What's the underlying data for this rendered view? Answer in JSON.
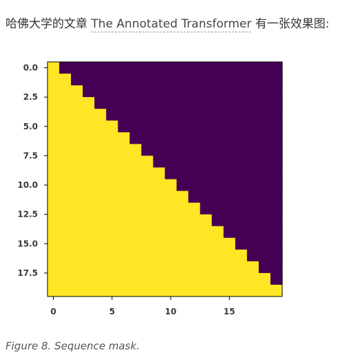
{
  "intro": {
    "prefix": "哈佛大学的文章",
    "link_text": "The Annotated Transformer",
    "suffix": "有一张效果图:"
  },
  "caption": "Figure 8. Sequence mask.",
  "colors": {
    "allowed": "#fde725",
    "masked": "#440154"
  },
  "chart_data": {
    "type": "heatmap",
    "title": "",
    "xlabel": "",
    "ylabel": "",
    "rows": 20,
    "cols": 20,
    "description_rule": "value = 1 where col <= row (lower-triangular incl. diagonal), else 0",
    "values": [
      [
        1,
        0,
        0,
        0,
        0,
        0,
        0,
        0,
        0,
        0,
        0,
        0,
        0,
        0,
        0,
        0,
        0,
        0,
        0,
        0
      ],
      [
        1,
        1,
        0,
        0,
        0,
        0,
        0,
        0,
        0,
        0,
        0,
        0,
        0,
        0,
        0,
        0,
        0,
        0,
        0,
        0
      ],
      [
        1,
        1,
        1,
        0,
        0,
        0,
        0,
        0,
        0,
        0,
        0,
        0,
        0,
        0,
        0,
        0,
        0,
        0,
        0,
        0
      ],
      [
        1,
        1,
        1,
        1,
        0,
        0,
        0,
        0,
        0,
        0,
        0,
        0,
        0,
        0,
        0,
        0,
        0,
        0,
        0,
        0
      ],
      [
        1,
        1,
        1,
        1,
        1,
        0,
        0,
        0,
        0,
        0,
        0,
        0,
        0,
        0,
        0,
        0,
        0,
        0,
        0,
        0
      ],
      [
        1,
        1,
        1,
        1,
        1,
        1,
        0,
        0,
        0,
        0,
        0,
        0,
        0,
        0,
        0,
        0,
        0,
        0,
        0,
        0
      ],
      [
        1,
        1,
        1,
        1,
        1,
        1,
        1,
        0,
        0,
        0,
        0,
        0,
        0,
        0,
        0,
        0,
        0,
        0,
        0,
        0
      ],
      [
        1,
        1,
        1,
        1,
        1,
        1,
        1,
        1,
        0,
        0,
        0,
        0,
        0,
        0,
        0,
        0,
        0,
        0,
        0,
        0
      ],
      [
        1,
        1,
        1,
        1,
        1,
        1,
        1,
        1,
        1,
        0,
        0,
        0,
        0,
        0,
        0,
        0,
        0,
        0,
        0,
        0
      ],
      [
        1,
        1,
        1,
        1,
        1,
        1,
        1,
        1,
        1,
        1,
        0,
        0,
        0,
        0,
        0,
        0,
        0,
        0,
        0,
        0
      ],
      [
        1,
        1,
        1,
        1,
        1,
        1,
        1,
        1,
        1,
        1,
        1,
        0,
        0,
        0,
        0,
        0,
        0,
        0,
        0,
        0
      ],
      [
        1,
        1,
        1,
        1,
        1,
        1,
        1,
        1,
        1,
        1,
        1,
        1,
        0,
        0,
        0,
        0,
        0,
        0,
        0,
        0
      ],
      [
        1,
        1,
        1,
        1,
        1,
        1,
        1,
        1,
        1,
        1,
        1,
        1,
        1,
        0,
        0,
        0,
        0,
        0,
        0,
        0
      ],
      [
        1,
        1,
        1,
        1,
        1,
        1,
        1,
        1,
        1,
        1,
        1,
        1,
        1,
        1,
        0,
        0,
        0,
        0,
        0,
        0
      ],
      [
        1,
        1,
        1,
        1,
        1,
        1,
        1,
        1,
        1,
        1,
        1,
        1,
        1,
        1,
        1,
        0,
        0,
        0,
        0,
        0
      ],
      [
        1,
        1,
        1,
        1,
        1,
        1,
        1,
        1,
        1,
        1,
        1,
        1,
        1,
        1,
        1,
        1,
        0,
        0,
        0,
        0
      ],
      [
        1,
        1,
        1,
        1,
        1,
        1,
        1,
        1,
        1,
        1,
        1,
        1,
        1,
        1,
        1,
        1,
        1,
        0,
        0,
        0
      ],
      [
        1,
        1,
        1,
        1,
        1,
        1,
        1,
        1,
        1,
        1,
        1,
        1,
        1,
        1,
        1,
        1,
        1,
        1,
        0,
        0
      ],
      [
        1,
        1,
        1,
        1,
        1,
        1,
        1,
        1,
        1,
        1,
        1,
        1,
        1,
        1,
        1,
        1,
        1,
        1,
        1,
        0
      ],
      [
        1,
        1,
        1,
        1,
        1,
        1,
        1,
        1,
        1,
        1,
        1,
        1,
        1,
        1,
        1,
        1,
        1,
        1,
        1,
        1
      ]
    ],
    "xlim": [
      -0.5,
      19.5
    ],
    "ylim": [
      19.5,
      -0.5
    ],
    "x_ticks": [
      0,
      5,
      10,
      15
    ],
    "x_tick_labels": [
      "0",
      "5",
      "10",
      "15"
    ],
    "y_ticks": [
      0,
      2.5,
      5,
      7.5,
      10,
      12.5,
      15,
      17.5
    ],
    "y_tick_labels": [
      "0.0",
      "2.5",
      "5.0",
      "7.5",
      "10.0",
      "12.5",
      "15.0",
      "17.5"
    ],
    "grid": false,
    "legend": "none"
  }
}
